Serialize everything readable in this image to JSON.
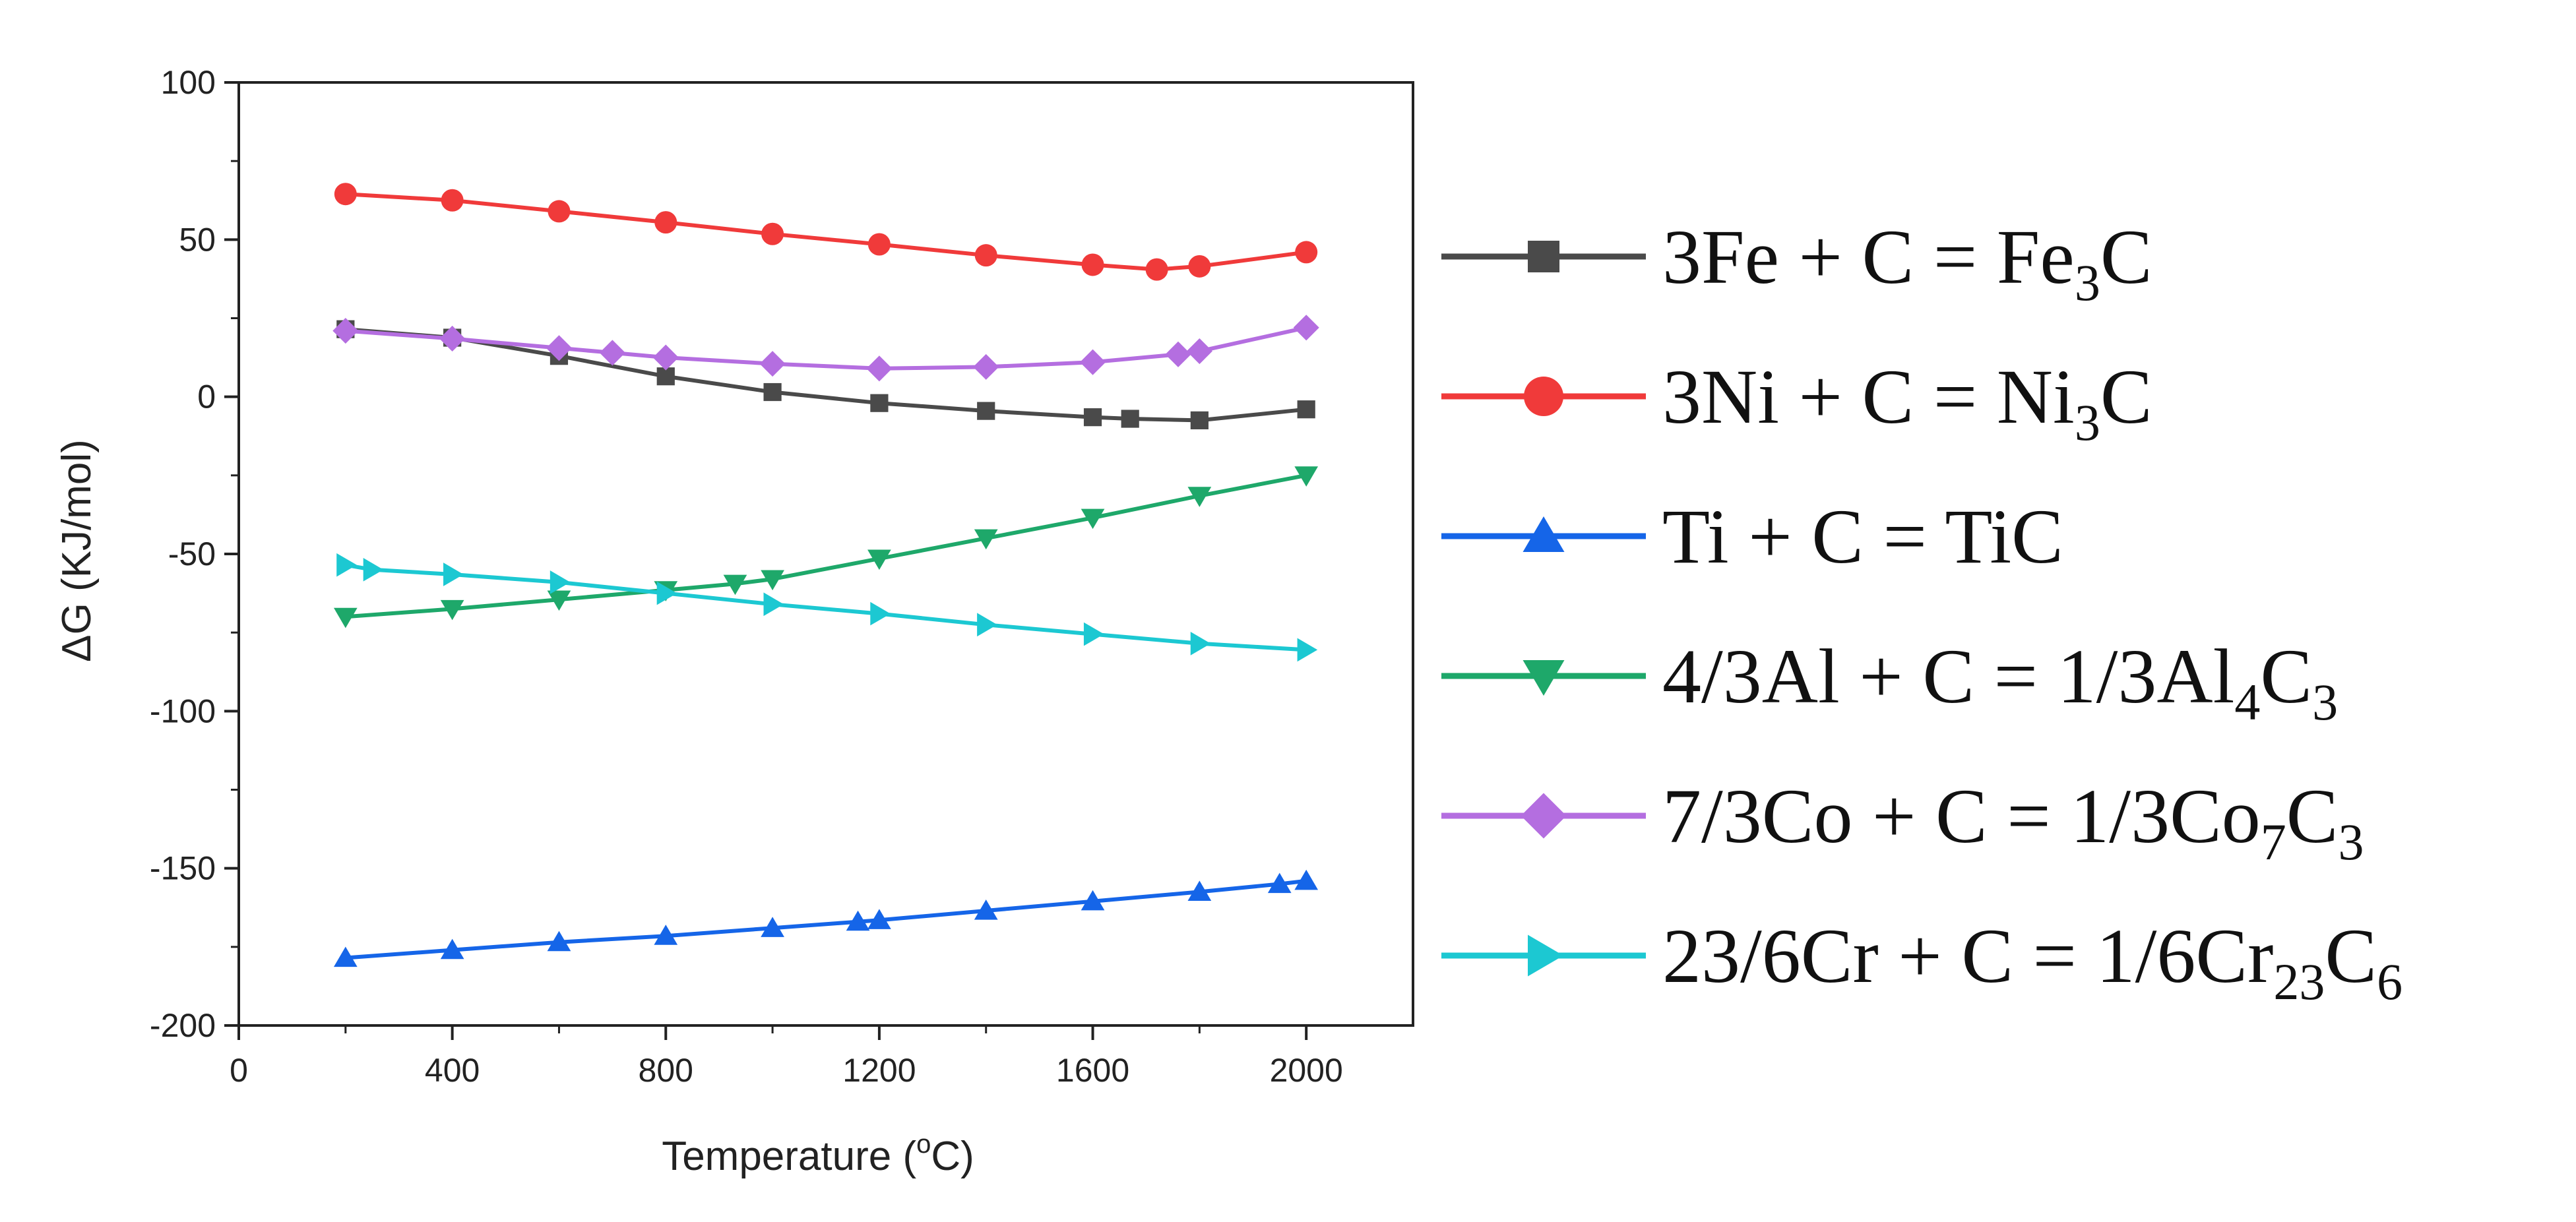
{
  "chart_data": {
    "type": "line",
    "xlabel": "Temperature (°C)",
    "xlabel_parts": {
      "prefix": "Temperature (",
      "sup": "o",
      "suffix": "C)"
    },
    "ylabel": "ΔG (KJ/mol)",
    "xlim": [
      0,
      2200
    ],
    "ylim": [
      -200,
      100
    ],
    "xticks": [
      0,
      400,
      800,
      1200,
      1600,
      2000
    ],
    "yticks": [
      100,
      50,
      0,
      -50,
      -100,
      -150,
      -200
    ],
    "grid": false,
    "legend_position": "right",
    "series": [
      {
        "name": "3Fe + C = Fe3C",
        "label_parts": [
          [
            "3Fe + C = Fe",
            ""
          ],
          [
            "3",
            "sub"
          ],
          [
            "C",
            ""
          ]
        ],
        "color": "#4a4a4a",
        "marker": "square",
        "x": [
          200,
          400,
          600,
          800,
          1000,
          1200,
          1400,
          1600,
          1670,
          1800,
          2000
        ],
        "y": [
          21.5,
          18.8,
          13.0,
          6.5,
          1.5,
          -2.0,
          -4.5,
          -6.5,
          -7.0,
          -7.5,
          -4.0
        ]
      },
      {
        "name": "3Ni + C = Ni3C",
        "label_parts": [
          [
            "3Ni + C = Ni",
            ""
          ],
          [
            "3",
            "sub"
          ],
          [
            "C",
            ""
          ]
        ],
        "color": "#f03a3a",
        "marker": "circle",
        "x": [
          200,
          400,
          600,
          800,
          1000,
          1200,
          1400,
          1600,
          1720,
          1800,
          2000
        ],
        "y": [
          64.5,
          62.5,
          59.0,
          55.5,
          51.8,
          48.5,
          45.0,
          42.0,
          40.5,
          41.5,
          46.0
        ]
      },
      {
        "name": "Ti + C = TiC",
        "label_parts": [
          [
            "Ti + C = TiC",
            ""
          ]
        ],
        "color": "#1565e8",
        "marker": "triangle-up",
        "x": [
          200,
          400,
          600,
          800,
          1000,
          1160,
          1200,
          1400,
          1600,
          1800,
          1950,
          2000
        ],
        "y": [
          -178.5,
          -176.0,
          -173.5,
          -171.5,
          -169.0,
          -167.0,
          -166.5,
          -163.5,
          -160.5,
          -157.5,
          -155.0,
          -154.0
        ]
      },
      {
        "name": "4/3Al + C = 1/3Al4C3",
        "label_parts": [
          [
            "4/3Al + C = 1/3Al",
            ""
          ],
          [
            "4",
            "sub"
          ],
          [
            "C",
            ""
          ],
          [
            "3",
            "sub"
          ]
        ],
        "color": "#1ea86a",
        "marker": "triangle-down",
        "x": [
          200,
          400,
          600,
          800,
          930,
          1000,
          1200,
          1400,
          1600,
          1800,
          2000
        ],
        "y": [
          -70.0,
          -67.5,
          -64.5,
          -61.5,
          -59.5,
          -58.0,
          -51.5,
          -45.0,
          -38.5,
          -31.5,
          -25.0
        ]
      },
      {
        "name": "7/3Co + C = 1/3Co7C3",
        "label_parts": [
          [
            "7/3Co + C = 1/3Co",
            ""
          ],
          [
            "7",
            "sub"
          ],
          [
            "C",
            ""
          ],
          [
            "3",
            "sub"
          ]
        ],
        "color": "#b46ee0",
        "marker": "diamond",
        "x": [
          200,
          400,
          600,
          700,
          800,
          1000,
          1200,
          1400,
          1600,
          1760,
          1800,
          2000
        ],
        "y": [
          21.0,
          18.5,
          15.5,
          14.0,
          12.5,
          10.5,
          9.0,
          9.5,
          11.0,
          13.5,
          14.5,
          22.0
        ]
      },
      {
        "name": "23/6Cr + C = 1/6Cr23C6",
        "label_parts": [
          [
            "23/6Cr + C = 1/6Cr",
            ""
          ],
          [
            "23",
            "sub"
          ],
          [
            "C",
            ""
          ],
          [
            "6",
            "sub"
          ]
        ],
        "color": "#1cc8d2",
        "marker": "triangle-right",
        "x": [
          200,
          250,
          400,
          600,
          800,
          1000,
          1200,
          1400,
          1600,
          1800,
          2000
        ],
        "y": [
          -53.5,
          -55.0,
          -56.5,
          -59.0,
          -62.5,
          -66.0,
          -69.0,
          -72.5,
          -75.5,
          -78.5,
          -80.5
        ]
      }
    ]
  }
}
